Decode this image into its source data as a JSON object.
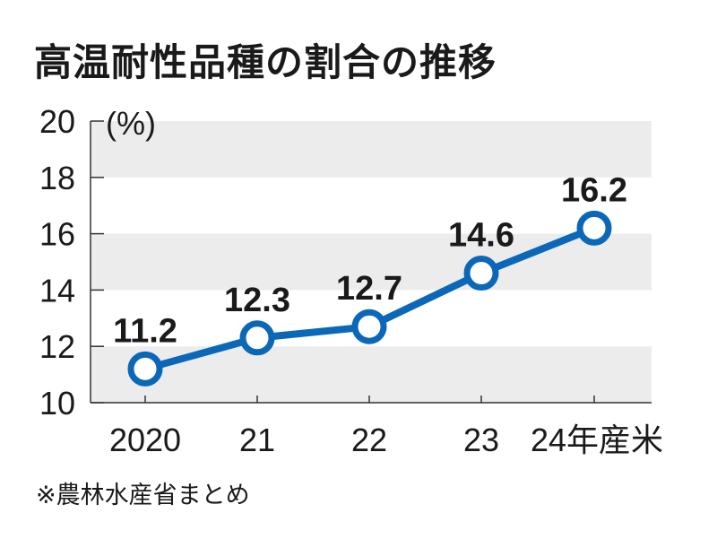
{
  "chart_data": {
    "type": "line",
    "title": "高温耐性品種の割合の推移",
    "ylabel": "(%)",
    "xlabel": "",
    "categories": [
      "2020",
      "21",
      "22",
      "23",
      "24年産米"
    ],
    "series": [
      {
        "name": "高温耐性品種の割合",
        "values": [
          11.2,
          12.3,
          12.7,
          14.6,
          16.2
        ]
      }
    ],
    "data_labels": [
      "11.2",
      "12.3",
      "12.7",
      "14.6",
      "16.2"
    ],
    "ylim": [
      10,
      20
    ],
    "yticks": [
      "10",
      "12",
      "14",
      "16",
      "18",
      "20"
    ],
    "grid": "alternating horizontal bands",
    "source": "※農林水産省まとめ",
    "colors": {
      "line": "#0b68b8",
      "band": "#ececec",
      "text": "#1a1a1a"
    }
  }
}
